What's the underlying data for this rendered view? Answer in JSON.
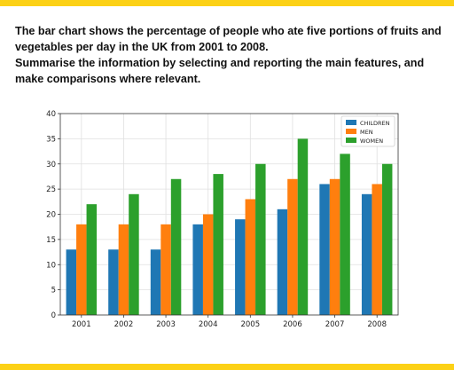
{
  "colors": {
    "accent_bar": "#fcd116",
    "children": "#1f77b4",
    "men": "#ff7f0e",
    "women": "#2ca02c",
    "grid": "#e0e0e0",
    "text": "#111111"
  },
  "prompt": {
    "line1": "The bar chart shows the percentage of people who ate five portions of fruits and vegetables per day in the UK from 2001 to 2008.",
    "line2": "Summarise the information by selecting and reporting the main features, and make comparisons where relevant."
  },
  "chart_data": {
    "type": "bar",
    "title": "",
    "xlabel": "",
    "ylabel": "",
    "categories": [
      "2001",
      "2002",
      "2003",
      "2004",
      "2005",
      "2006",
      "2007",
      "2008"
    ],
    "series": [
      {
        "name": "CHILDREN",
        "values": [
          13,
          13,
          13,
          18,
          19,
          21,
          26,
          24
        ]
      },
      {
        "name": "MEN",
        "values": [
          18,
          18,
          18,
          20,
          23,
          27,
          27,
          26
        ]
      },
      {
        "name": "WOMEN",
        "values": [
          22,
          24,
          27,
          28,
          30,
          35,
          32,
          30
        ]
      }
    ],
    "ylim": [
      0,
      40
    ],
    "yticks": [
      0,
      5,
      10,
      15,
      20,
      25,
      30,
      35,
      40
    ],
    "grid": true,
    "legend_position": "top-right"
  }
}
